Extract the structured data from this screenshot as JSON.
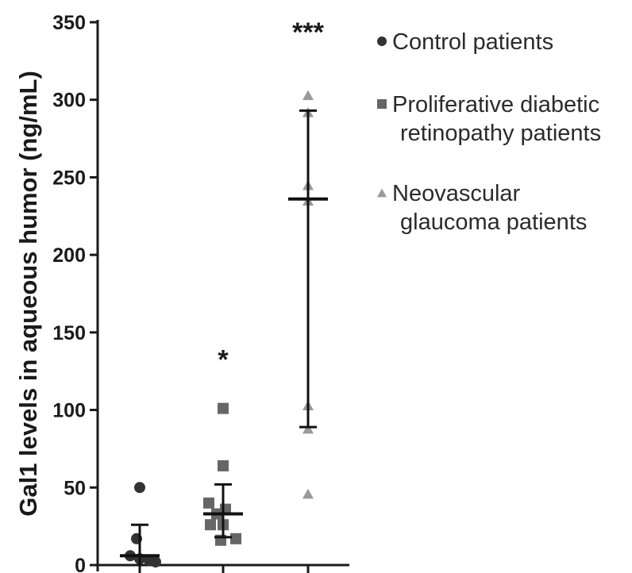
{
  "chart_data": {
    "type": "scatter",
    "ylabel": "Gal1 levels in aqueous humor (ng/mL)",
    "ylim": [
      0,
      350
    ],
    "yticks": [
      0,
      50,
      100,
      150,
      200,
      250,
      300,
      350
    ],
    "grid": false,
    "legend_position": "top-right",
    "series": [
      {
        "name_lines": [
          "Control patients"
        ],
        "marker": "circle",
        "color": "#333333",
        "values": [
          50,
          17,
          6,
          4,
          3,
          2
        ],
        "mean": 6,
        "error_bar": [
          0,
          26
        ],
        "significance": ""
      },
      {
        "name_lines": [
          "Proliferative diabetic",
          "retinopathy patients"
        ],
        "marker": "square",
        "color": "#666666",
        "values": [
          101,
          64,
          40,
          36,
          33,
          26,
          26,
          17,
          16
        ],
        "mean": 33,
        "error_bar": [
          18,
          52
        ],
        "significance": "*"
      },
      {
        "name_lines": [
          "Neovascular",
          "glaucoma patients"
        ],
        "marker": "triangle",
        "color": "#999999",
        "values": [
          303,
          292,
          245,
          235,
          103,
          88,
          46
        ],
        "mean": 236,
        "error_bar": [
          89,
          293
        ],
        "significance": "***"
      }
    ]
  }
}
